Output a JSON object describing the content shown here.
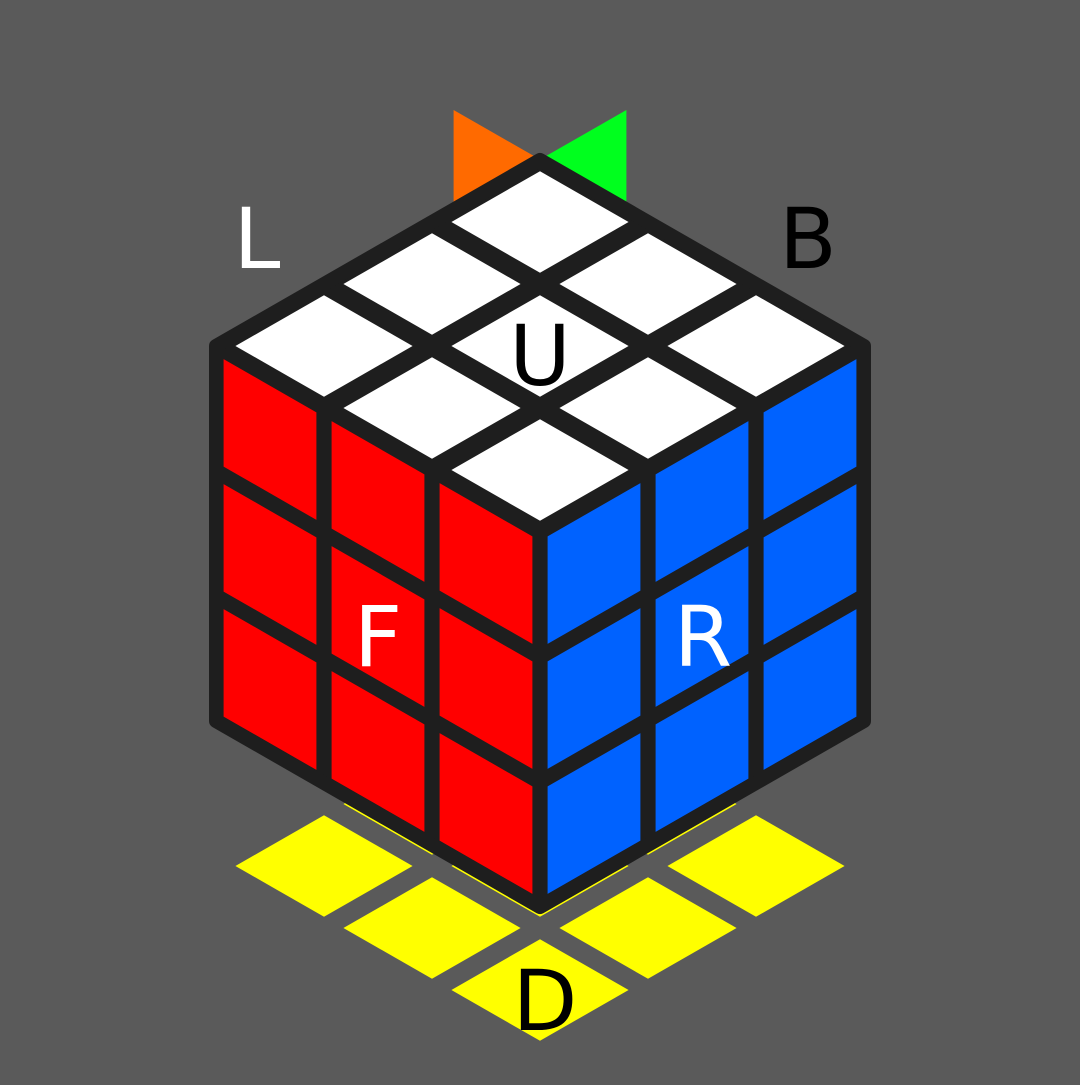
{
  "colors": {
    "background": "#5a5a5a",
    "frame": "#1e1e1e",
    "white": "#ffffff",
    "blue": "#0062ff",
    "red": "#ff0000",
    "orange": "#ff6a00",
    "green": "#00ff1e",
    "yellow": "#ffff00",
    "label_light": "#ffffff",
    "label_dark": "#000000"
  },
  "faces": {
    "U": {
      "label": "U",
      "color": "white"
    },
    "F": {
      "label": "F",
      "color": "blue"
    },
    "R": {
      "label": "R",
      "color": "red"
    },
    "L": {
      "label": "L",
      "color": "orange"
    },
    "B": {
      "label": "B",
      "color": "green"
    },
    "D": {
      "label": "D",
      "color": "yellow"
    }
  }
}
